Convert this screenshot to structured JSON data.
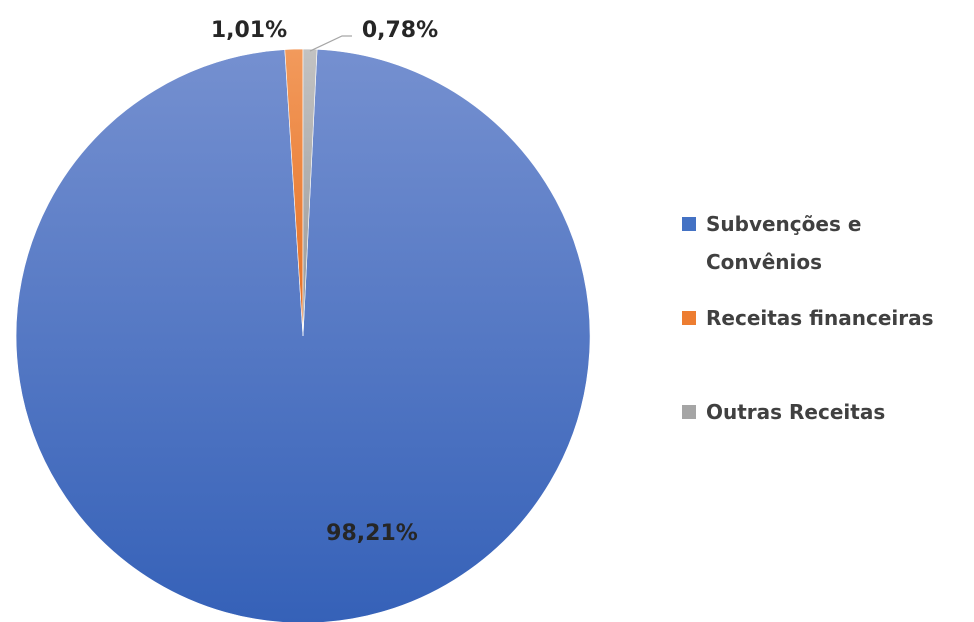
{
  "chart_data": {
    "type": "pie",
    "title": "",
    "slices": [
      {
        "label": "Subvenções e Convênios",
        "legend_lines": [
          "Subvenções e",
          "Convênios"
        ],
        "value": 98.21,
        "display": "98,21%",
        "color": "#4472c4"
      },
      {
        "label": "Receitas financeiras",
        "legend_lines": [
          "Receitas financeiras"
        ],
        "value": 1.01,
        "display": "1,01%",
        "color": "#ed7d31"
      },
      {
        "label": "Outras Receitas",
        "legend_lines": [
          "Outras Receitas"
        ],
        "value": 0.78,
        "display": "0,78%",
        "color": "#a5a5a5"
      }
    ],
    "legend_position": "right",
    "data_label_color": "#262626",
    "legend_text_color": "#404040",
    "leader_line_color": "#a6a6a6"
  }
}
